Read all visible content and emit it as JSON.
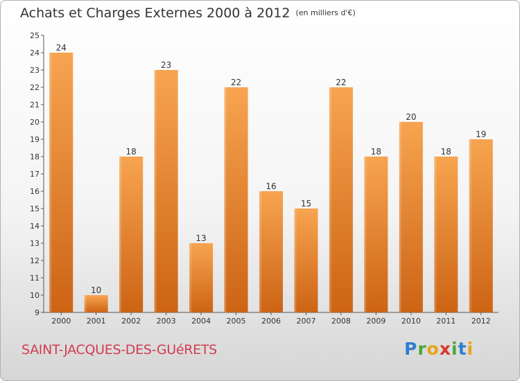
{
  "title": "Achats et Charges Externes 2000 à 2012",
  "title_unit": "(en milliers d'€)",
  "city": "SAINT-JACQUES-DES-GUéRETS",
  "logo": {
    "letters": [
      {
        "char": "P",
        "color": "#2f7fd1"
      },
      {
        "char": "r",
        "color": "#4aa83a"
      },
      {
        "char": "o",
        "color": "#e8a31c"
      },
      {
        "char": "x",
        "color": "#d9362b"
      },
      {
        "char": "i",
        "color": "#4aa83a"
      },
      {
        "char": "t",
        "color": "#2f7fd1"
      },
      {
        "char": "i",
        "color": "#e8a31c"
      }
    ]
  },
  "colors": {
    "bar_top": "#f7a451",
    "bar_bottom": "#cc6414",
    "text": "#333333",
    "axis": "#555555"
  },
  "chart_data": {
    "type": "bar",
    "title": "Achats et Charges Externes 2000 à 2012",
    "unit": "(en milliers d'€)",
    "categories": [
      "2000",
      "2001",
      "2002",
      "2003",
      "2004",
      "2005",
      "2006",
      "2007",
      "2008",
      "2009",
      "2010",
      "2011",
      "2012"
    ],
    "values": [
      24,
      10,
      18,
      23,
      13,
      22,
      16,
      15,
      22,
      18,
      20,
      18,
      19
    ],
    "ylim": [
      9,
      25
    ],
    "yticks": [
      9,
      10,
      11,
      12,
      13,
      14,
      15,
      16,
      17,
      18,
      19,
      20,
      21,
      22,
      23,
      24,
      25
    ],
    "xlabel": "",
    "ylabel": "",
    "grid": false,
    "legend": "none",
    "data_labels": true
  }
}
